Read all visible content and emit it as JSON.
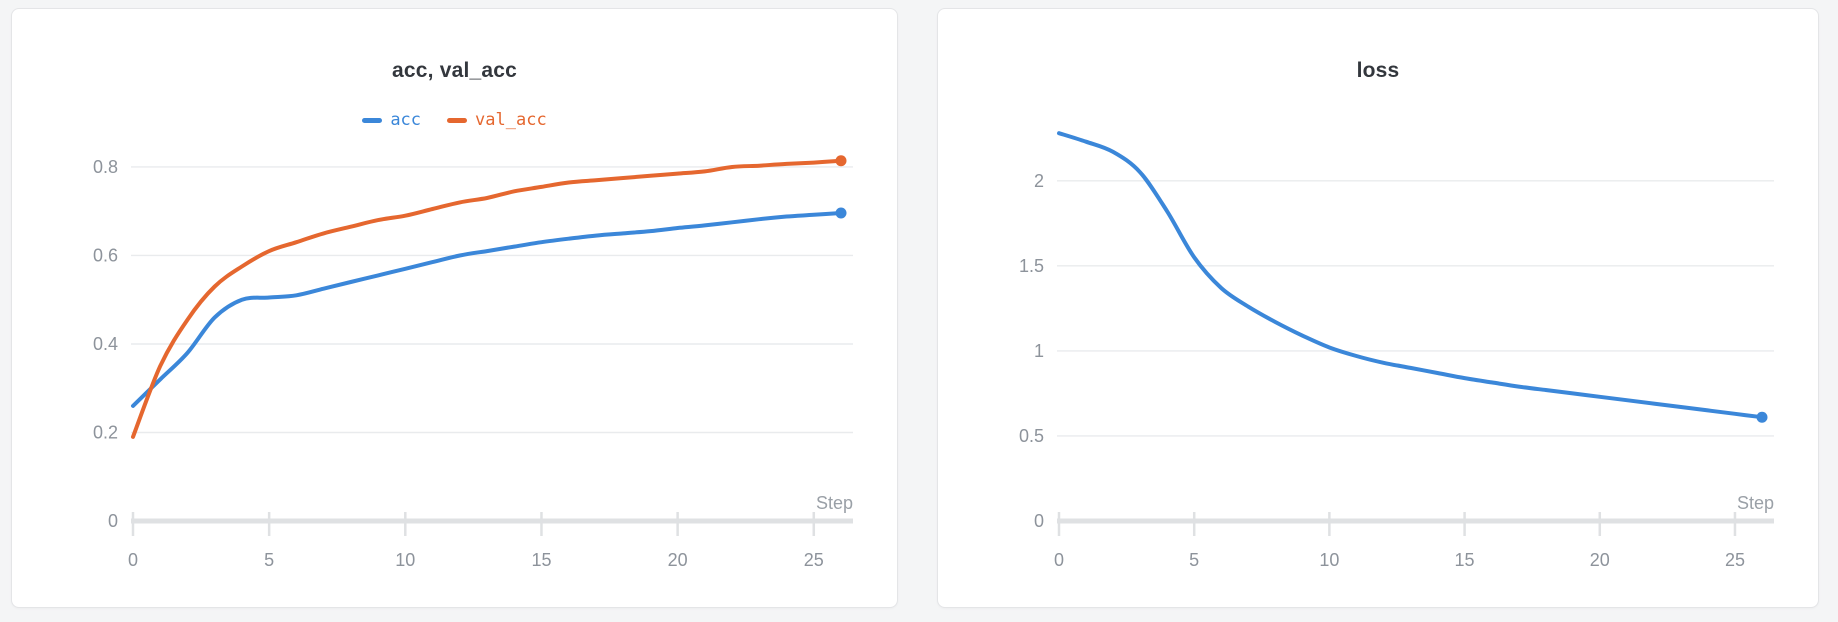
{
  "page": {
    "background_color": "#f4f5f6",
    "panel_border_color": "#e4e5e7",
    "gridline_color": "#e9ebed",
    "axis_color": "#dfe1e3",
    "tick_label_color": "#8d939b",
    "axis_label_color": "#9aa0a7",
    "title_color": "#33373d"
  },
  "chart_data": [
    {
      "type": "line",
      "title": "acc, val_acc",
      "xlabel": "Step",
      "ylabel": "",
      "xlim": [
        0,
        26
      ],
      "ylim": [
        0,
        1.157
      ],
      "grid": true,
      "legend_position": "top-center",
      "xticks": [
        0,
        5,
        10,
        15,
        20,
        25
      ],
      "xtick_labels": [
        "0",
        "5",
        "10",
        "15",
        "20",
        "25"
      ],
      "yticks": [
        0,
        0.2,
        0.4,
        0.6,
        0.8
      ],
      "ytick_labels": [
        "0",
        "0.2",
        "0.4",
        "0.6",
        "0.8"
      ],
      "x": [
        0,
        1,
        2,
        3,
        4,
        5,
        6,
        7,
        8,
        9,
        10,
        11,
        12,
        13,
        14,
        15,
        16,
        17,
        18,
        19,
        20,
        21,
        22,
        23,
        24,
        25,
        26
      ],
      "series": [
        {
          "name": "acc",
          "color": "#3b87d9",
          "endpoint_marker": true,
          "values": [
            0.26,
            0.32,
            0.38,
            0.46,
            0.5,
            0.505,
            0.51,
            0.525,
            0.54,
            0.555,
            0.57,
            0.585,
            0.6,
            0.61,
            0.62,
            0.63,
            0.638,
            0.645,
            0.65,
            0.655,
            0.662,
            0.668,
            0.675,
            0.682,
            0.688,
            0.692,
            0.696
          ]
        },
        {
          "name": "val_acc",
          "color": "#e5672f",
          "endpoint_marker": true,
          "values": [
            0.19,
            0.35,
            0.455,
            0.53,
            0.575,
            0.61,
            0.63,
            0.65,
            0.665,
            0.68,
            0.69,
            0.705,
            0.72,
            0.73,
            0.745,
            0.755,
            0.765,
            0.77,
            0.775,
            0.78,
            0.785,
            0.79,
            0.8,
            0.803,
            0.807,
            0.81,
            0.814
          ]
        }
      ]
    },
    {
      "type": "line",
      "title": "loss",
      "xlabel": "Step",
      "ylabel": "",
      "xlim": [
        0,
        26
      ],
      "ylim": [
        0,
        3.01
      ],
      "grid": true,
      "legend_position": "none",
      "xticks": [
        0,
        5,
        10,
        15,
        20,
        25
      ],
      "xtick_labels": [
        "0",
        "5",
        "10",
        "15",
        "20",
        "25"
      ],
      "yticks": [
        0,
        0.5,
        1,
        1.5,
        2
      ],
      "ytick_labels": [
        "0",
        "0.5",
        "1",
        "1.5",
        "2"
      ],
      "x": [
        0,
        1,
        2,
        3,
        4,
        5,
        6,
        7,
        8,
        9,
        10,
        11,
        12,
        13,
        14,
        15,
        16,
        17,
        18,
        19,
        20,
        21,
        22,
        23,
        24,
        25,
        26
      ],
      "series": [
        {
          "name": "loss",
          "color": "#3b87d9",
          "endpoint_marker": true,
          "values": [
            2.28,
            2.23,
            2.17,
            2.05,
            1.82,
            1.55,
            1.37,
            1.26,
            1.17,
            1.09,
            1.02,
            0.97,
            0.93,
            0.9,
            0.87,
            0.84,
            0.815,
            0.79,
            0.77,
            0.75,
            0.73,
            0.71,
            0.69,
            0.67,
            0.65,
            0.63,
            0.61
          ]
        }
      ]
    }
  ]
}
